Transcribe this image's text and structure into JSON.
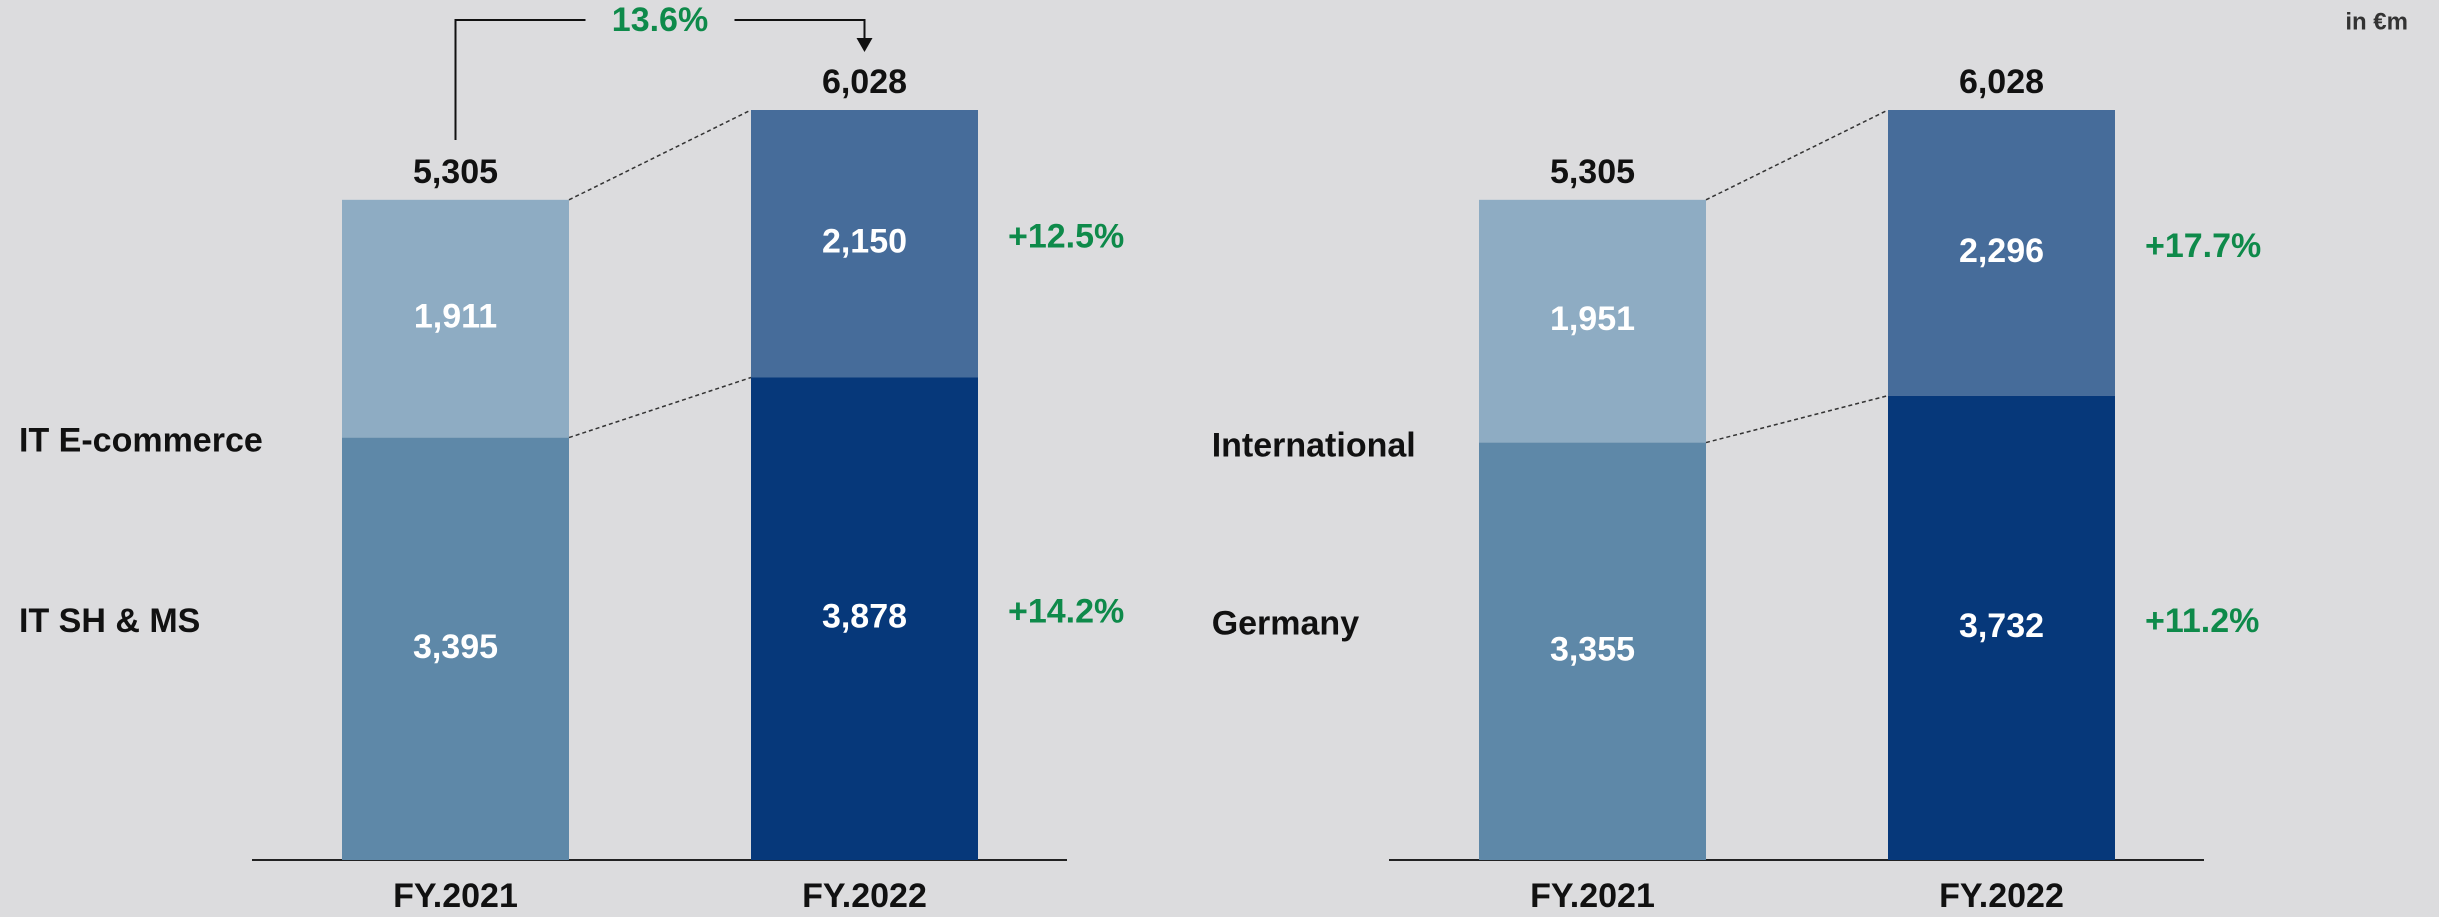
{
  "unit": "in €m",
  "chart_data": [
    {
      "type": "stacked_bar",
      "categories": [
        "FY.2021",
        "FY.2022"
      ],
      "series": [
        {
          "name": "IT SH & MS",
          "colors": [
            "#5e88a8",
            "#06387a"
          ],
          "values": [
            3395,
            3878
          ],
          "value_labels": [
            "3,395",
            "3,878"
          ],
          "change": "+14.2%"
        },
        {
          "name": "IT E-commerce",
          "colors": [
            "#8eacc3",
            "#466c9a"
          ],
          "values": [
            1911,
            2150
          ],
          "value_labels": [
            "1,911",
            "2,150"
          ],
          "change": "+12.5%"
        }
      ],
      "totals": [
        5305,
        6028
      ],
      "total_labels": [
        "5,305",
        "6,028"
      ],
      "annotation": "13.6%"
    },
    {
      "type": "stacked_bar",
      "categories": [
        "FY.2021",
        "FY.2022"
      ],
      "series": [
        {
          "name": "Germany",
          "colors": [
            "#5e88a8",
            "#06387a"
          ],
          "values": [
            3355,
            3732
          ],
          "value_labels": [
            "3,355",
            "3,732"
          ],
          "change": "+11.2%"
        },
        {
          "name": "International",
          "colors": [
            "#8eacc3",
            "#466c9a"
          ],
          "values": [
            1951,
            2296
          ],
          "value_labels": [
            "1,951",
            "2,296"
          ],
          "change": "+17.7%"
        }
      ],
      "totals": [
        5305,
        6028
      ],
      "total_labels": [
        "5,305",
        "6,028"
      ]
    }
  ]
}
